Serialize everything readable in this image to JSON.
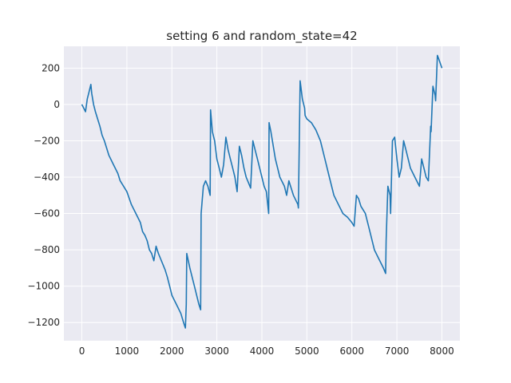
{
  "chart_data": {
    "type": "line",
    "title": "setting 6 and random_state=42",
    "xlabel": "",
    "ylabel": "",
    "xlim": [
      -400,
      8400
    ],
    "ylim": [
      -1300,
      320
    ],
    "xticks": [
      0,
      1000,
      2000,
      3000,
      4000,
      5000,
      6000,
      7000,
      8000
    ],
    "xtick_labels": [
      "0",
      "1000",
      "2000",
      "3000",
      "4000",
      "5000",
      "6000",
      "7000",
      "8000"
    ],
    "yticks": [
      200,
      0,
      -200,
      -400,
      -600,
      -800,
      -1000,
      -1200
    ],
    "ytick_labels": [
      "200",
      "0",
      "−200",
      "−400",
      "−600",
      "−800",
      "−1000",
      "−1200"
    ],
    "grid": true,
    "style": "seaborn-darkgrid",
    "series": [
      {
        "color": "#1f77b4",
        "x": [
          0,
          40,
          80,
          120,
          160,
          200,
          220,
          260,
          300,
          350,
          400,
          450,
          500,
          600,
          700,
          800,
          850,
          900,
          1000,
          1100,
          1200,
          1300,
          1350,
          1400,
          1450,
          1500,
          1550,
          1600,
          1650,
          1700,
          1750,
          1800,
          1850,
          1900,
          1950,
          2000,
          2100,
          2200,
          2260,
          2300,
          2320,
          2330,
          2400,
          2500,
          2600,
          2640,
          2650,
          2700,
          2750,
          2800,
          2850,
          2860,
          2900,
          2950,
          3000,
          3050,
          3100,
          3150,
          3200,
          3250,
          3300,
          3350,
          3400,
          3450,
          3500,
          3550,
          3600,
          3650,
          3700,
          3750,
          3800,
          3850,
          3900,
          3950,
          4000,
          4050,
          4100,
          4150,
          4160,
          4200,
          4300,
          4400,
          4500,
          4550,
          4600,
          4700,
          4800,
          4810,
          4850,
          4900,
          4950,
          4960,
          5000,
          5100,
          5200,
          5300,
          5400,
          5500,
          5600,
          5700,
          5800,
          5900,
          6000,
          6050,
          6100,
          6150,
          6200,
          6300,
          6400,
          6500,
          6600,
          6700,
          6750,
          6760,
          6800,
          6850,
          6860,
          6900,
          6950,
          7000,
          7050,
          7100,
          7150,
          7200,
          7250,
          7300,
          7400,
          7500,
          7550,
          7600,
          7650,
          7700,
          7750,
          7760,
          7800,
          7850,
          7860,
          7900,
          7930,
          8000
        ],
        "y": [
          0,
          -20,
          -40,
          30,
          70,
          110,
          60,
          0,
          -40,
          -80,
          -120,
          -170,
          -200,
          -280,
          -330,
          -380,
          -420,
          -440,
          -480,
          -550,
          -600,
          -650,
          -700,
          -720,
          -750,
          -800,
          -820,
          -860,
          -780,
          -820,
          -850,
          -880,
          -910,
          -950,
          -1000,
          -1050,
          -1100,
          -1150,
          -1200,
          -1230,
          -1100,
          -820,
          -900,
          -1000,
          -1100,
          -1130,
          -600,
          -450,
          -420,
          -450,
          -500,
          -30,
          -150,
          -200,
          -300,
          -350,
          -400,
          -330,
          -180,
          -250,
          -300,
          -350,
          -400,
          -480,
          -230,
          -280,
          -350,
          -400,
          -430,
          -460,
          -200,
          -250,
          -300,
          -350,
          -400,
          -450,
          -480,
          -600,
          -100,
          -150,
          -300,
          -400,
          -450,
          -500,
          -420,
          -500,
          -550,
          -570,
          130,
          30,
          -20,
          -60,
          -80,
          -100,
          -140,
          -200,
          -300,
          -400,
          -500,
          -550,
          -600,
          -620,
          -650,
          -670,
          -500,
          -520,
          -560,
          -600,
          -700,
          -800,
          -850,
          -900,
          -930,
          -750,
          -450,
          -500,
          -600,
          -200,
          -180,
          -300,
          -400,
          -350,
          -200,
          -250,
          -300,
          -350,
          -400,
          -450,
          -300,
          -350,
          -400,
          -420,
          -120,
          -150,
          100,
          50,
          20,
          270,
          250,
          200
        ]
      }
    ]
  }
}
